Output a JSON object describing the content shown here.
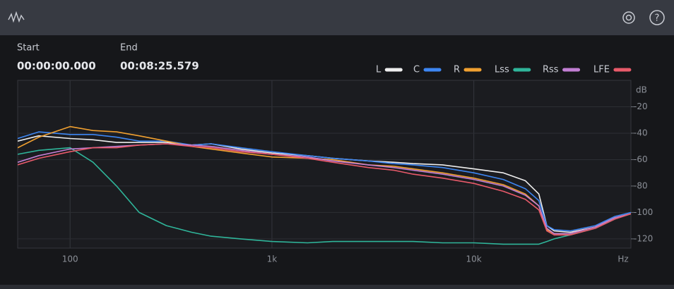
{
  "header": {
    "start_label": "Start",
    "end_label": "End",
    "start_time": "00:00:00.000",
    "end_time": "00:08:25.579"
  },
  "chart_data": {
    "type": "line",
    "xscale": "log",
    "grid": true,
    "x_unit": "Hz",
    "y_unit": "dB",
    "x": [
      55,
      70,
      100,
      130,
      170,
      220,
      300,
      400,
      500,
      700,
      1000,
      1500,
      2000,
      3000,
      4000,
      5000,
      7000,
      10000,
      14000,
      18000,
      21000,
      23000,
      25000,
      30000,
      40000,
      50000,
      60000
    ],
    "xlim": [
      55,
      60000
    ],
    "xticks": [
      100,
      {
        "value": 1000,
        "label": "1k"
      },
      {
        "value": 10000,
        "label": "10k"
      }
    ],
    "ylim": [
      -127,
      0
    ],
    "yticks": [
      -20,
      -40,
      -60,
      -80,
      -100,
      -120
    ],
    "series": [
      {
        "name": "L",
        "color": "#eeeeee",
        "values": [
          -46,
          -42,
          -44,
          -45,
          -47,
          -47,
          -47,
          -49,
          -48,
          -52,
          -55,
          -57,
          -59,
          -61,
          -62,
          -63,
          -64,
          -67,
          -70,
          -76,
          -86,
          -110,
          -114,
          -115,
          -111,
          -104,
          -101
        ]
      },
      {
        "name": "C",
        "color": "#3d86f2",
        "values": [
          -44,
          -39,
          -41,
          -41,
          -43,
          -46,
          -46,
          -49,
          -48,
          -51,
          -54,
          -57,
          -59,
          -61,
          -63,
          -64,
          -66,
          -70,
          -75,
          -82,
          -91,
          -110,
          -113,
          -114,
          -110,
          -103,
          -100
        ]
      },
      {
        "name": "R",
        "color": "#f0a030",
        "values": [
          -51,
          -43,
          -35,
          -38,
          -39,
          -42,
          -46,
          -50,
          -52,
          -55,
          -58,
          -59,
          -60,
          -64,
          -65,
          -67,
          -70,
          -74,
          -79,
          -86,
          -95,
          -113,
          -116,
          -116,
          -111,
          -104,
          -101
        ]
      },
      {
        "name": "Lss",
        "color": "#2fb59a",
        "values": [
          -56,
          -53,
          -51,
          -62,
          -80,
          -100,
          -110,
          -115,
          -118,
          -120,
          -122,
          -123,
          -122,
          -122,
          -122,
          -122,
          -123,
          -123,
          -124,
          -124,
          -124,
          -122,
          -120,
          -117,
          -112,
          -105,
          -101
        ]
      },
      {
        "name": "Rss",
        "color": "#c27fd4",
        "values": [
          -62,
          -57,
          -52,
          -51,
          -50,
          -49,
          -48,
          -49,
          -50,
          -53,
          -56,
          -58,
          -61,
          -64,
          -66,
          -68,
          -71,
          -75,
          -80,
          -87,
          -95,
          -112,
          -116,
          -116,
          -111,
          -104,
          -101
        ]
      },
      {
        "name": "LFE",
        "color": "#e85a6a",
        "values": [
          -64,
          -59,
          -54,
          -51,
          -51,
          -49,
          -48,
          -50,
          -51,
          -54,
          -56,
          -59,
          -62,
          -66,
          -68,
          -71,
          -74,
          -78,
          -84,
          -90,
          -98,
          -114,
          -117,
          -117,
          -112,
          -105,
          -101
        ]
      }
    ]
  }
}
